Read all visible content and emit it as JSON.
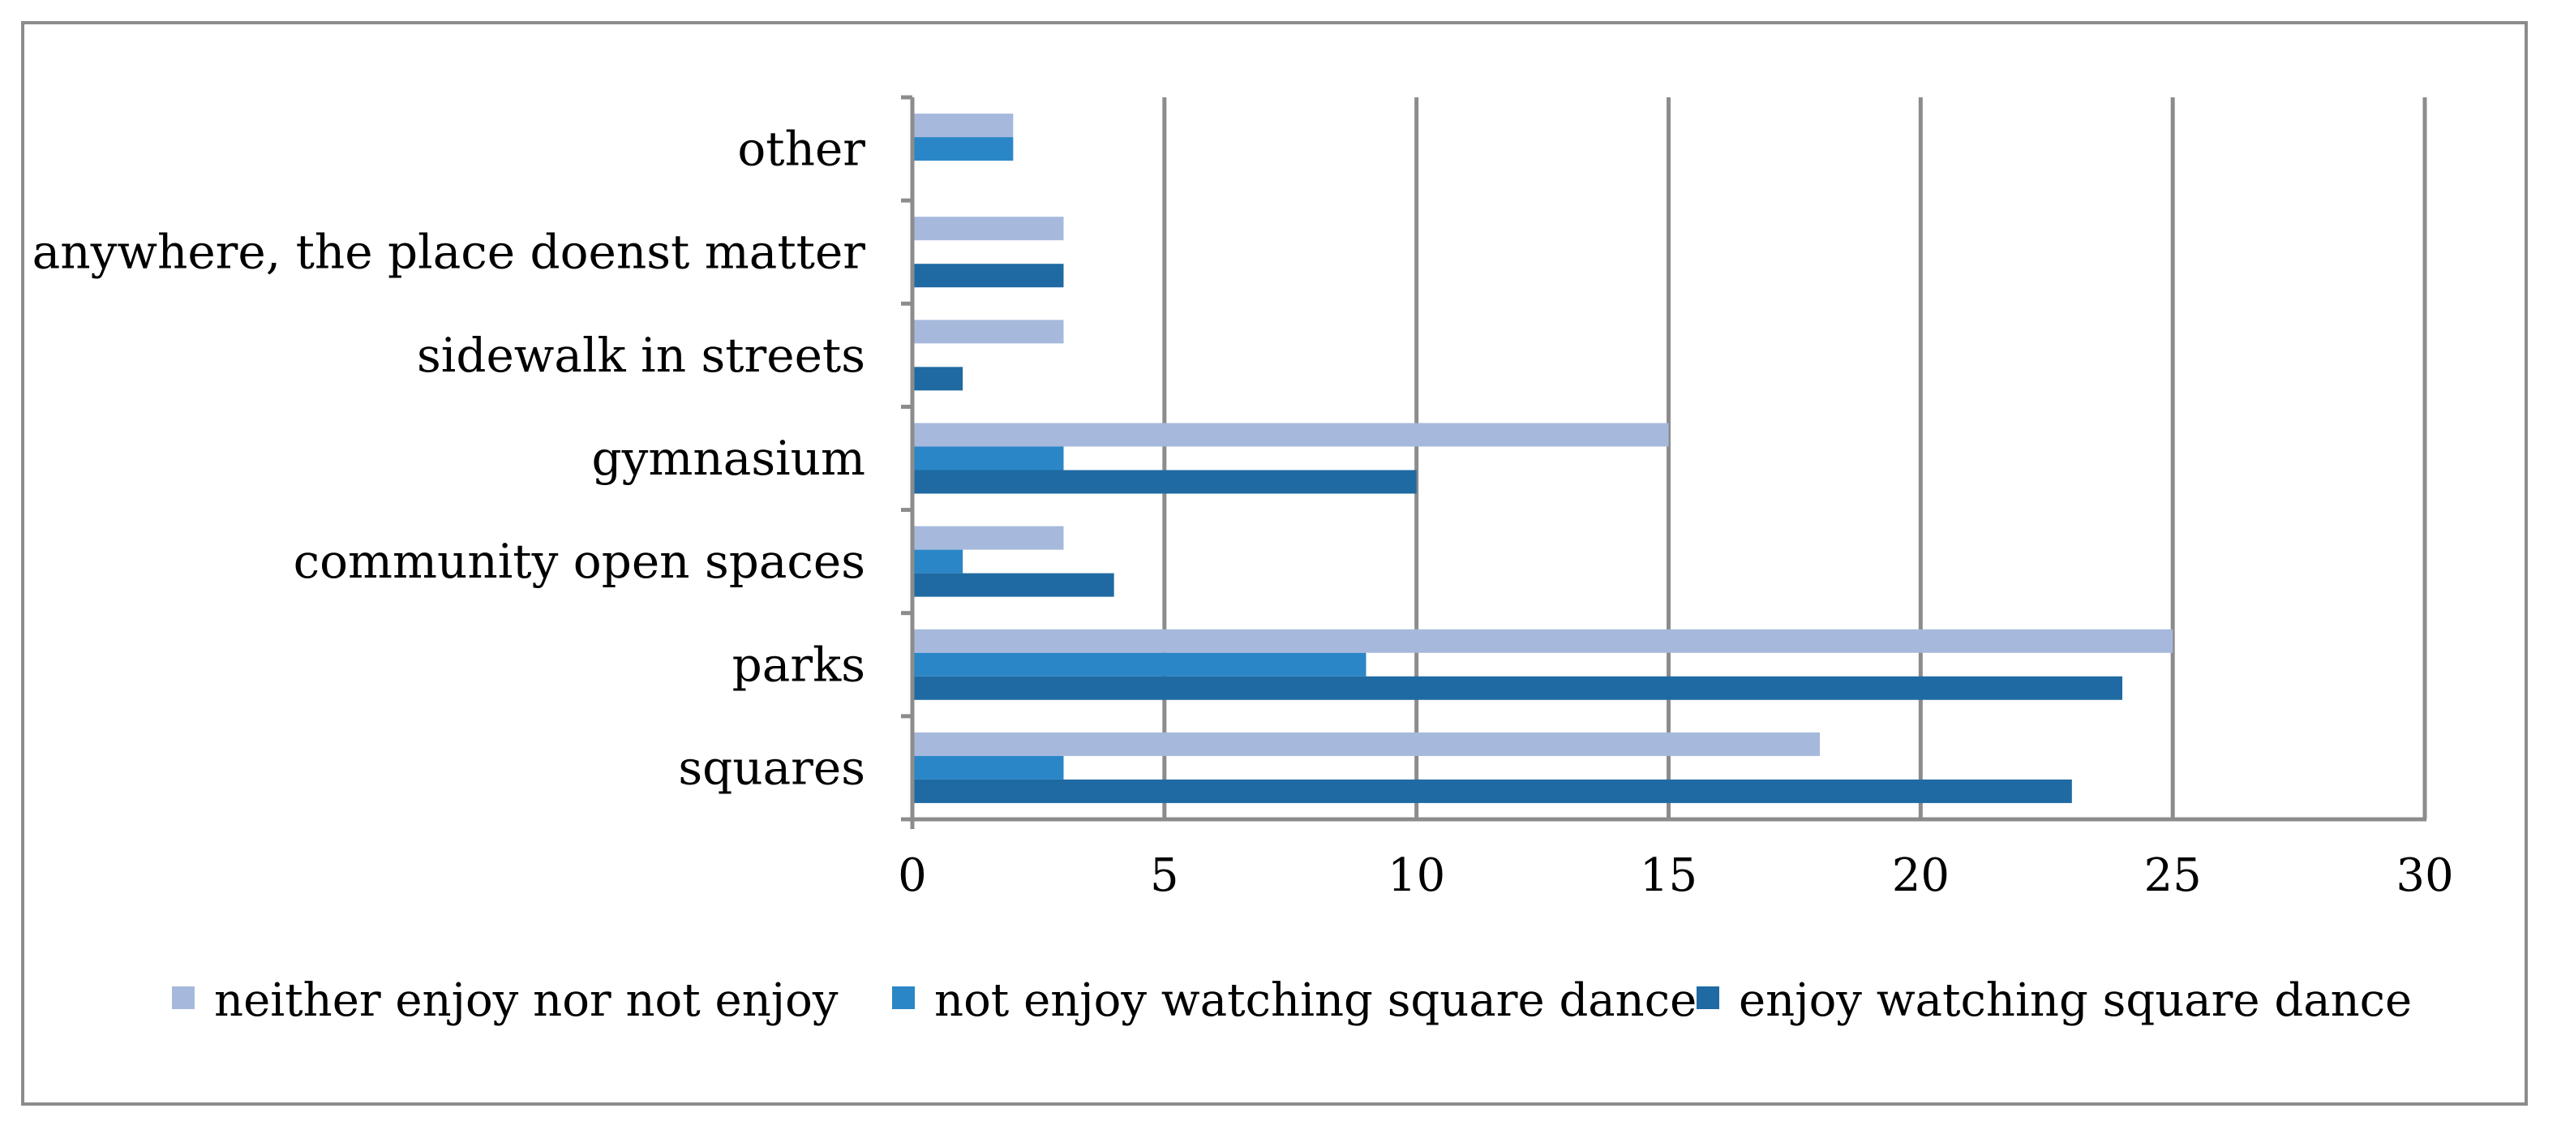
{
  "chart_data": {
    "type": "bar",
    "orientation": "horizontal",
    "categories": [
      "squares",
      "parks",
      "community open spaces",
      "gymnasium",
      "sidewalk in streets",
      "anywhere, the place doenst matter",
      "other"
    ],
    "series": [
      {
        "name": "neither enjoy nor not enjoy",
        "color": "#a6b9dc",
        "values": [
          18,
          25,
          3,
          15,
          3,
          3,
          2
        ]
      },
      {
        "name": "not enjoy watching square dance",
        "color": "#2a86c7",
        "values": [
          3,
          9,
          1,
          3,
          0,
          0,
          2
        ]
      },
      {
        "name": "enjoy watching square dance",
        "color": "#1f6aa2",
        "values": [
          23,
          24,
          4,
          10,
          1,
          3,
          0
        ]
      }
    ],
    "xlim": [
      0,
      30
    ],
    "xticks": [
      0,
      5,
      10,
      15,
      20,
      25,
      30
    ],
    "grid": "vertical",
    "legend_position": "bottom",
    "title": "",
    "xlabel": "",
    "ylabel": ""
  }
}
